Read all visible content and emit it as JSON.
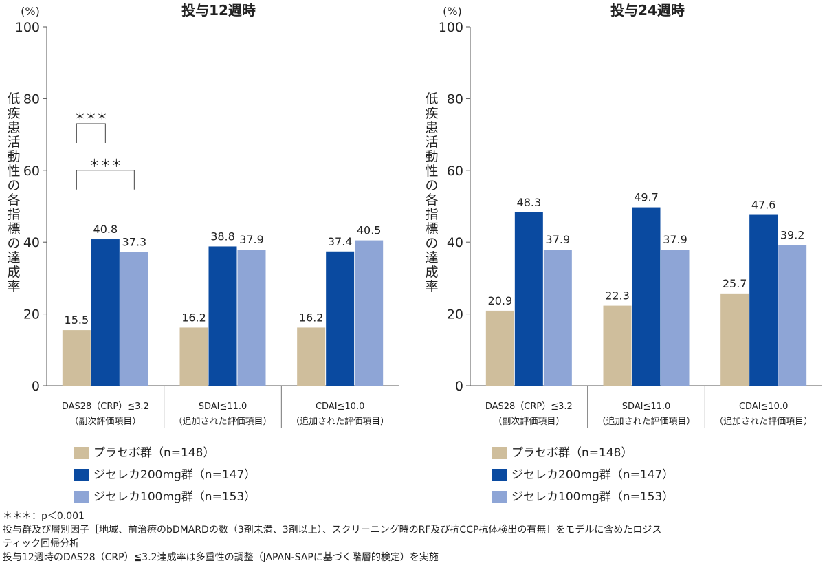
{
  "chart_data": [
    {
      "type": "bar",
      "title": "投与12週時",
      "yunit": "(%)",
      "ylabel": "低疾患活動性の各指標の達成率",
      "ylim": [
        0,
        100
      ],
      "yticks": [
        0,
        20,
        40,
        60,
        80,
        100
      ],
      "categories": [
        {
          "line1": "DAS28（CRP）≦3.2",
          "line2": "（副次評価項目）"
        },
        {
          "line1": "SDAI≦11.0",
          "line2": "（追加された評価項目）"
        },
        {
          "line1": "CDAI≦10.0",
          "line2": "（追加された評価項目）"
        }
      ],
      "series": [
        {
          "name": "プラセボ群（n=148）",
          "color": "#cfbe9c",
          "values": [
            15.5,
            16.2,
            16.2
          ]
        },
        {
          "name": "ジセレカ200mg群（n=147）",
          "color": "#0a4aa0",
          "values": [
            40.8,
            38.8,
            37.4
          ]
        },
        {
          "name": "ジセレカ100mg群（n=153）",
          "color": "#8ea5d6",
          "values": [
            37.3,
            37.9,
            40.5
          ]
        }
      ],
      "significance": [
        {
          "label": "＊＊＊",
          "from_series": 0,
          "to_series": 1,
          "category": 0,
          "at": 73
        },
        {
          "label": "＊＊＊",
          "from_series": 0,
          "to_series": 2,
          "category": 0,
          "at": 60
        }
      ],
      "legend_position": "bottom-left"
    },
    {
      "type": "bar",
      "title": "投与24週時",
      "yunit": "(%)",
      "ylabel": "低疾患活動性の各指標の達成率",
      "ylim": [
        0,
        100
      ],
      "yticks": [
        0,
        20,
        40,
        60,
        80,
        100
      ],
      "categories": [
        {
          "line1": "DAS28（CRP）≦3.2",
          "line2": "（副次評価項目）"
        },
        {
          "line1": "SDAI≦11.0",
          "line2": "（追加された評価項目）"
        },
        {
          "line1": "CDAI≦10.0",
          "line2": "（追加された評価項目）"
        }
      ],
      "series": [
        {
          "name": "プラセボ群（n=148）",
          "color": "#cfbe9c",
          "values": [
            20.9,
            22.3,
            25.7
          ]
        },
        {
          "name": "ジセレカ200mg群（n=147）",
          "color": "#0a4aa0",
          "values": [
            48.3,
            49.7,
            47.6
          ]
        },
        {
          "name": "ジセレカ100mg群（n=153）",
          "color": "#8ea5d6",
          "values": [
            37.9,
            37.9,
            39.2
          ]
        }
      ],
      "significance": [],
      "legend_position": "bottom-left"
    }
  ],
  "footnotes": [
    "＊＊＊：p＜0.001",
    "投与群及び層別因子［地域、前治療のbDMARDの数（3剤未満、3剤以上）、スクリーニング時のRF及び抗CCP抗体検出の有無］をモデルに含めたロジス",
    "ティック回帰分析",
    "投与12週時のDAS28（CRP）≦3.2達成率は多重性の調整（JAPAN-SAPに基づく階層的検定）を実施"
  ]
}
